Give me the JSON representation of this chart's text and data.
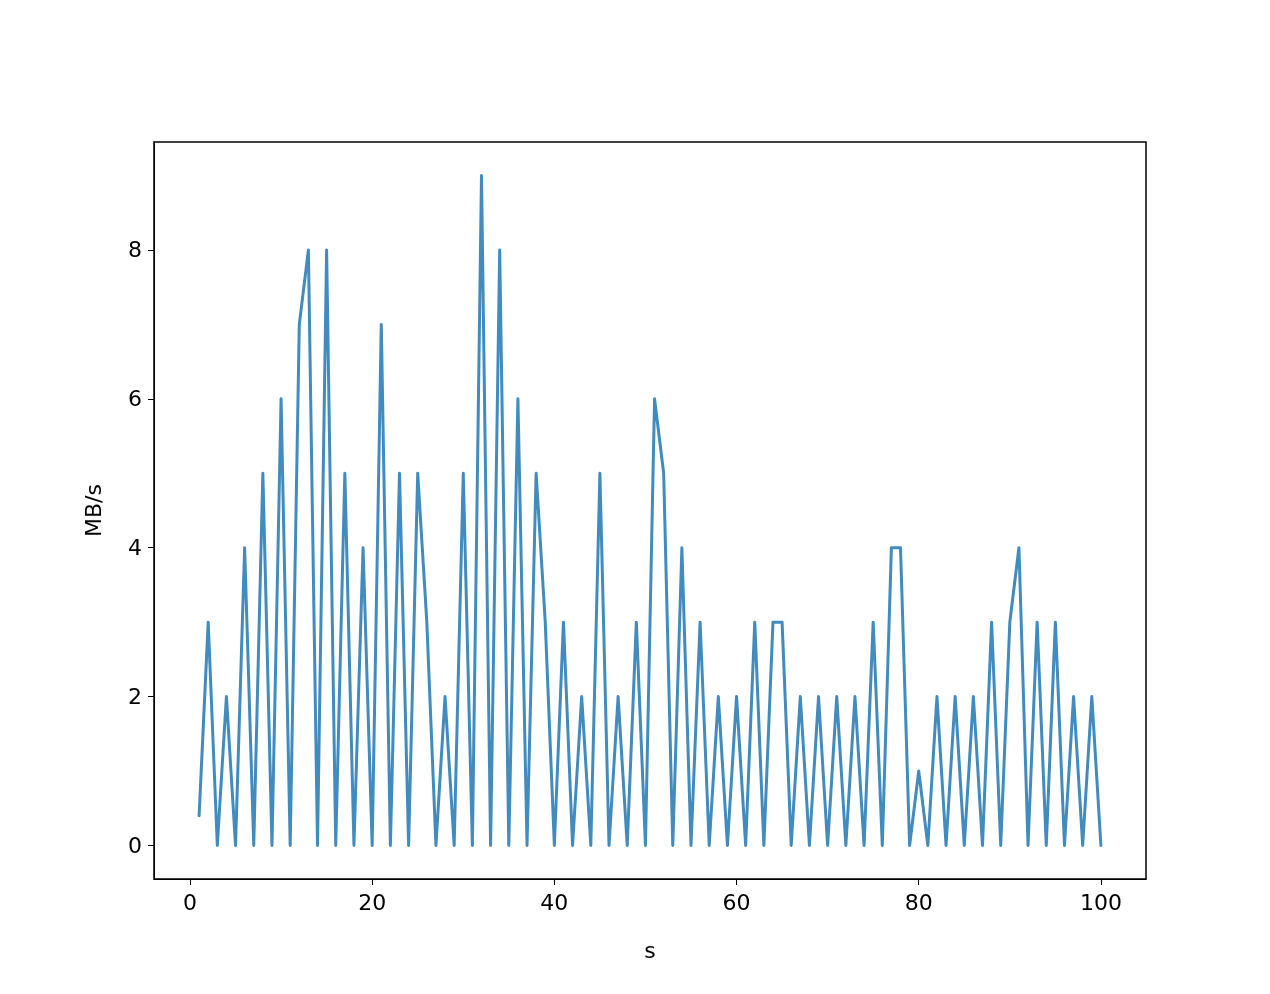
{
  "chart_data": {
    "type": "line",
    "xlabel": "s",
    "ylabel": "MB/s",
    "x": [
      1,
      2,
      3,
      4,
      5,
      6,
      7,
      8,
      9,
      10,
      11,
      12,
      13,
      14,
      15,
      16,
      17,
      18,
      19,
      20,
      21,
      22,
      23,
      24,
      25,
      26,
      27,
      28,
      29,
      30,
      31,
      32,
      33,
      34,
      35,
      36,
      37,
      38,
      39,
      40,
      41,
      42,
      43,
      44,
      45,
      46,
      47,
      48,
      49,
      50,
      51,
      52,
      53,
      54,
      55,
      56,
      57,
      58,
      59,
      60,
      61,
      62,
      63,
      64,
      65,
      66,
      67,
      68,
      69,
      70,
      71,
      72,
      73,
      74,
      75,
      76,
      77,
      78,
      79,
      80,
      81,
      82,
      83,
      84,
      85,
      86,
      87,
      88,
      89,
      90,
      91,
      92,
      93,
      94,
      95,
      96,
      97,
      98,
      99,
      100
    ],
    "series": [
      {
        "color": "#428bbf",
        "values": [
          0.4,
          3,
          0,
          2,
          0,
          4,
          0,
          5,
          0,
          6,
          0,
          7,
          8,
          0,
          8,
          0,
          5,
          0,
          4,
          0,
          7,
          0,
          5,
          0,
          5,
          3,
          0,
          2,
          0,
          5,
          0,
          9,
          0,
          8,
          0,
          6,
          0,
          5,
          3,
          0,
          3,
          0,
          2,
          0,
          5,
          0,
          2,
          0,
          3,
          0,
          6,
          5,
          0,
          4,
          0,
          3,
          0,
          2,
          0,
          2,
          0,
          3,
          0,
          3,
          3,
          0,
          2,
          0,
          2,
          0,
          2,
          0,
          2,
          0,
          3,
          0,
          4,
          4,
          0,
          1,
          0,
          2,
          0,
          2,
          0,
          2,
          0,
          3,
          0,
          3,
          4,
          0,
          3,
          0,
          3,
          0,
          2,
          0,
          2,
          0
        ]
      }
    ],
    "xlim": [
      -3.95,
      104.95
    ],
    "ylim": [
      -0.45,
      9.45
    ],
    "xticks": [
      0,
      20,
      40,
      60,
      80,
      100
    ],
    "yticks": [
      0,
      2,
      4,
      6,
      8
    ],
    "grid": false,
    "marker": "none",
    "line_style": "solid"
  }
}
